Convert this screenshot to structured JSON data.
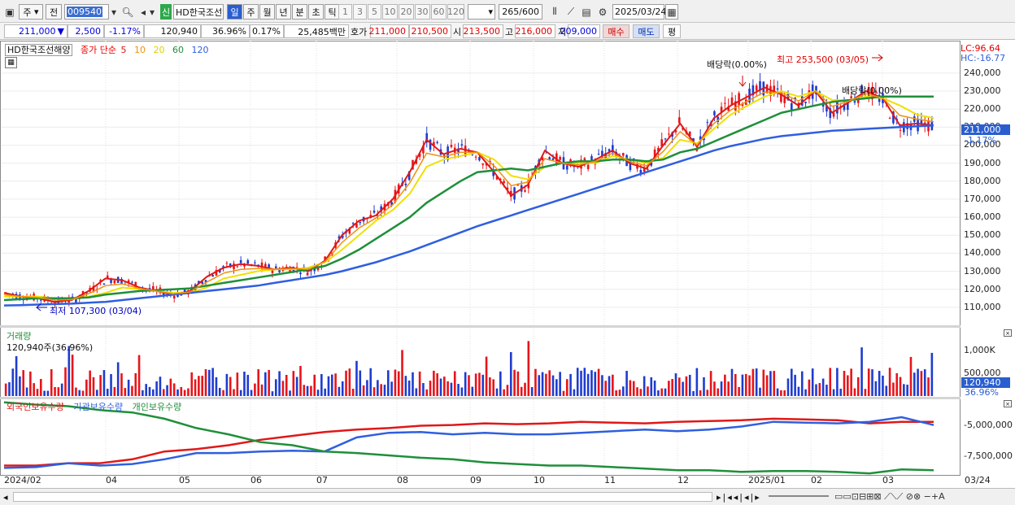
{
  "toolbar": {
    "type": "주",
    "prev": "전",
    "code": "009540",
    "name": "HD한국조선해양",
    "badge": "신",
    "periods": [
      "일",
      "주",
      "월",
      "년",
      "분",
      "초",
      "틱"
    ],
    "active_period": "일",
    "n": [
      "1",
      "3",
      "5",
      "10",
      "20",
      "30",
      "60",
      "120"
    ],
    "count": "265",
    "total": "/600",
    "date": "2025/03/24"
  },
  "quote": {
    "price": "211,000",
    "arrow": "▼",
    "change": "2,500",
    "rate": "-1.17%",
    "volume": "120,940",
    "vol_ratio": "36.96%",
    "turnover": "0.17%",
    "amount": "25,485백만",
    "hoga_label": "호가",
    "ask": "211,000",
    "bid": "210,500",
    "open_label": "시",
    "open": "213,500",
    "high_label": "고",
    "high": "216,000",
    "low_label": "저",
    "low": "209,000",
    "buy": "매수",
    "sell": "매도",
    "eval": "평"
  },
  "price_panel": {
    "stock": "HD한국조선해양",
    "ma_label": "종가 단순",
    "ma": [
      "5",
      "10",
      "20",
      "60",
      "120"
    ],
    "lc": "LC:96.64",
    "hc": "HC:-16.77",
    "cur_price": "211,000",
    "cur_rate": "-1.17%",
    "max_label": "최고 253,500 (03/05)",
    "min_label": "최저 107,300 (03/04)",
    "div1": "배당락(0.00%)",
    "div2": "배당락(0.00%)",
    "y_ticks": [
      "240,000",
      "230,000",
      "220,000",
      "210,000",
      "200,000",
      "190,000",
      "180,000",
      "170,000",
      "160,000",
      "150,000",
      "140,000",
      "130,000",
      "120,000",
      "110,000"
    ]
  },
  "volume_panel": {
    "title": "거래량",
    "info": "120,940주(36.96%)",
    "y_ticks": [
      "1,000K",
      "500,000"
    ],
    "cur": "120,940",
    "cur_rate": "36.96%"
  },
  "holding_panel": {
    "s1": "외국인보유수량",
    "s2": "기관보유수량",
    "s3": "개인보유수량",
    "y_ticks": [
      "-5,000,000",
      "-7,500,000"
    ]
  },
  "x_axis": [
    "2024/02",
    "04",
    "05",
    "06",
    "07",
    "08",
    "09",
    "10",
    "11",
    "12",
    "2025/01",
    "02",
    "03",
    "03/24"
  ],
  "colors": {
    "up": "#e8141a",
    "down": "#1e3ccf",
    "ma5": "#e01818",
    "ma10": "#f09010",
    "ma20": "#f0e000",
    "ma60": "#1f8f3a",
    "ma120": "#2f5fe0"
  },
  "chart_data": {
    "type": "candlestick",
    "title": "HD한국조선해양",
    "ylim": [
      100000,
      258000
    ],
    "x_range": [
      "2024/02",
      "2025/03/24"
    ],
    "high": {
      "label": "최고",
      "value": 253500,
      "date": "03/05"
    },
    "low": {
      "label": "최저",
      "value": 107300,
      "date": "03/04"
    },
    "series": [
      {
        "name": "5",
        "values": [
          118000,
          116000,
          115000,
          113000,
          114000,
          119000,
          126000,
          125000,
          121000,
          119000,
          117000,
          119000,
          127000,
          132000,
          134000,
          133000,
          131000,
          132000,
          130000,
          136000,
          150000,
          158000,
          161000,
          170000,
          185000,
          203000,
          195000,
          198000,
          196000,
          185000,
          172000,
          178000,
          197000,
          190000,
          188000,
          192000,
          197000,
          190000,
          187000,
          200000,
          212000,
          199000,
          215000,
          222000,
          227000,
          232000,
          228000,
          222000,
          230000,
          218000,
          224000,
          230000,
          226000,
          211000,
          212000,
          211000
        ]
      },
      {
        "name": "20",
        "values": [
          116000,
          116000,
          116000,
          115000,
          114500,
          116000,
          118000,
          121000,
          120000,
          119000,
          118000,
          118000,
          121000,
          126000,
          128000,
          130000,
          131000,
          131000,
          132000,
          135000,
          142000,
          150000,
          158000,
          164000,
          173000,
          188000,
          192000,
          194000,
          196000,
          192000,
          183000,
          181000,
          188000,
          190000,
          190000,
          190000,
          194000,
          192000,
          190000,
          193000,
          203000,
          201000,
          209000,
          217000,
          222000,
          227000,
          230000,
          227000,
          230000,
          225000,
          225000,
          227000,
          226000,
          222000,
          217000,
          215000
        ]
      },
      {
        "name": "60",
        "values": [
          114000,
          114500,
          115000,
          115000,
          115000,
          115500,
          117000,
          118000,
          119000,
          119500,
          120000,
          120500,
          122000,
          123500,
          125000,
          126500,
          128000,
          129500,
          131000,
          133000,
          137000,
          142000,
          148000,
          154000,
          160000,
          168000,
          174000,
          180000,
          185000,
          186000,
          187000,
          186000,
          188000,
          190000,
          191000,
          191000,
          192000,
          192000,
          191000,
          192000,
          196000,
          198000,
          202000,
          206000,
          210000,
          214000,
          218000,
          220000,
          222000,
          224000,
          225000,
          226000,
          227000,
          227000,
          227000,
          227000
        ]
      },
      {
        "name": "120",
        "values": [
          111000,
          111200,
          111500,
          111800,
          112000,
          112500,
          113000,
          114000,
          115000,
          116000,
          117000,
          118000,
          119000,
          120000,
          121000,
          122000,
          123500,
          125000,
          126500,
          128000,
          130000,
          132500,
          135000,
          138000,
          141000,
          144500,
          148000,
          151500,
          155000,
          158000,
          161000,
          164000,
          167000,
          170000,
          173000,
          176000,
          179000,
          182000,
          185000,
          188000,
          191000,
          194000,
          197000,
          199500,
          201500,
          203500,
          205000,
          206000,
          207000,
          208000,
          208500,
          209000,
          209500,
          210000,
          210500,
          211000
        ]
      }
    ]
  }
}
